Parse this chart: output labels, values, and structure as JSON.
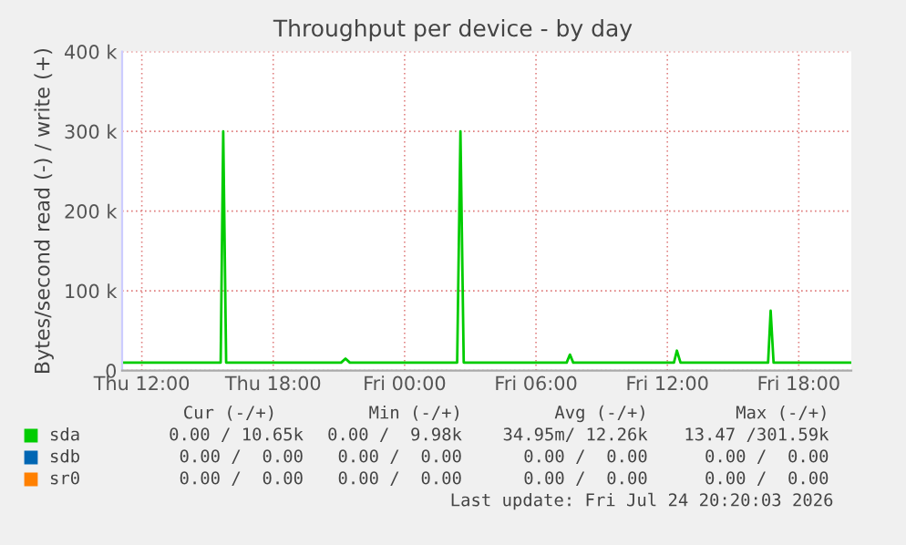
{
  "chart_data": {
    "type": "line",
    "title": "Throughput per device - by day",
    "ylabel": "Bytes/second read (-) / write (+)",
    "xlim": [
      "2026-07-23T11:06",
      "2026-07-24T20:24"
    ],
    "xticks": [
      {
        "value": "2026-07-23T12:00",
        "label": "Thu 12:00"
      },
      {
        "value": "2026-07-23T18:00",
        "label": "Thu 18:00"
      },
      {
        "value": "2026-07-24T00:00",
        "label": "Fri 00:00"
      },
      {
        "value": "2026-07-24T06:00",
        "label": "Fri 06:00"
      },
      {
        "value": "2026-07-24T12:00",
        "label": "Fri 12:00"
      },
      {
        "value": "2026-07-24T18:00",
        "label": "Fri 18:00"
      }
    ],
    "ylim": [
      0,
      400000
    ],
    "yticks": [
      0,
      {
        "value": 100000,
        "label": "100 k"
      },
      {
        "value": 200000,
        "label": "200 k"
      },
      {
        "value": 300000,
        "label": "300 k"
      },
      {
        "value": 400000,
        "label": "400 k"
      }
    ],
    "grid": true,
    "legend": "bottom left",
    "series": [
      {
        "name": "sda",
        "color": "#00cc00",
        "x": [
          "2026-07-23T11:06",
          "2026-07-23T12:00",
          "2026-07-23T13:00",
          "2026-07-23T14:00",
          "2026-07-23T15:00",
          "2026-07-23T15:36",
          "2026-07-23T15:43",
          "2026-07-23T15:51",
          "2026-07-23T16:30",
          "2026-07-23T18:00",
          "2026-07-23T19:00",
          "2026-07-23T20:00",
          "2026-07-23T21:06",
          "2026-07-23T21:18",
          "2026-07-23T21:30",
          "2026-07-23T23:00",
          "2026-07-24T01:00",
          "2026-07-24T02:24",
          "2026-07-24T02:33",
          "2026-07-24T02:42",
          "2026-07-24T04:00",
          "2026-07-24T06:00",
          "2026-07-24T07:24",
          "2026-07-24T07:33",
          "2026-07-24T07:42",
          "2026-07-24T09:00",
          "2026-07-24T11:00",
          "2026-07-24T12:18",
          "2026-07-24T12:26",
          "2026-07-24T12:36",
          "2026-07-24T14:00",
          "2026-07-24T16:36",
          "2026-07-24T16:43",
          "2026-07-24T16:51",
          "2026-07-24T18:00",
          "2026-07-24T20:24"
        ],
        "values": [
          10000,
          10000,
          10000,
          10000,
          10000,
          10000,
          300000,
          10000,
          10000,
          10000,
          10000,
          10000,
          10000,
          15000,
          10000,
          10000,
          10000,
          10000,
          300000,
          10000,
          10000,
          10000,
          10000,
          20000,
          10000,
          10000,
          10000,
          10000,
          25000,
          10000,
          10000,
          10000,
          75000,
          10000,
          10000,
          10000
        ]
      },
      {
        "name": "sdb",
        "color": "#0066b3"
      },
      {
        "name": "sr0",
        "color": "#ff8000"
      }
    ],
    "annotations": [
      "Cur (-/+)",
      "Min (-/+)",
      "Avg (-/+)",
      "Max (-/+)",
      "0.00 / 10.65k",
      "0.00 /  9.98k",
      "34.95m/ 12.26k",
      "13.47 /301.59k",
      "0.00 /  0.00",
      "0.00 /  0.00",
      "0.00 /  0.00",
      "0.00 /  0.00",
      "0.00 /  0.00",
      "0.00 /  0.00",
      "0.00 /  0.00",
      "0.00 /  0.00",
      "Last update: Fri Jul 24 20:20:03 2026"
    ]
  }
}
